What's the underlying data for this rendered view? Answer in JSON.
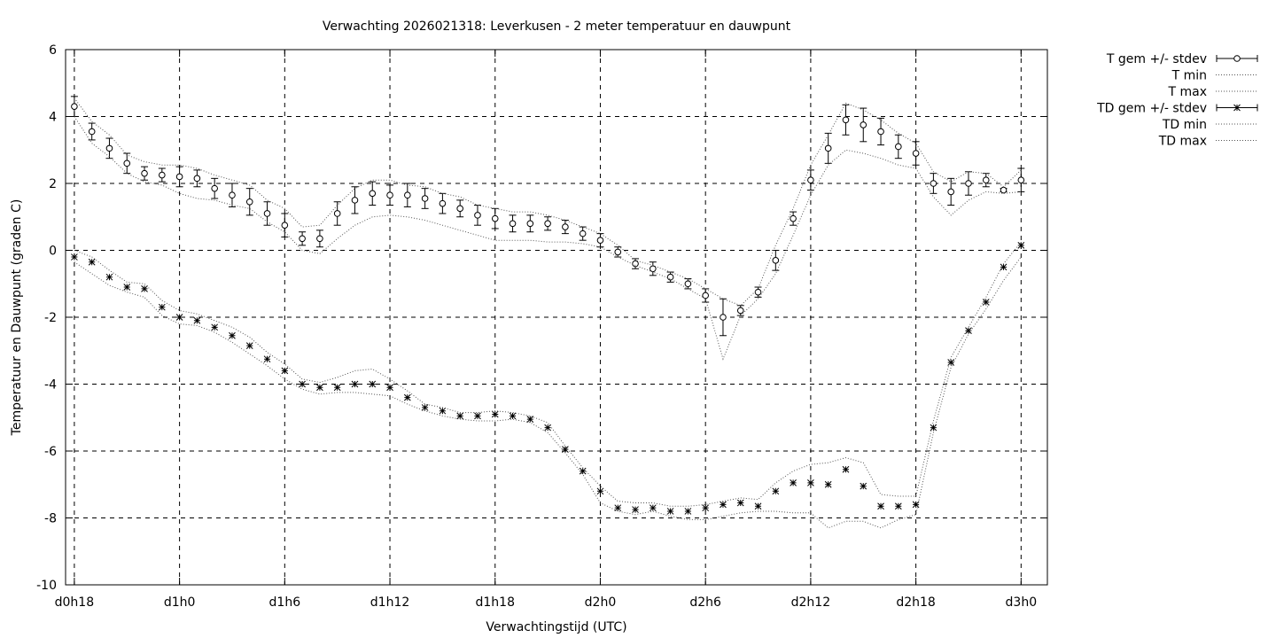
{
  "chart_data": {
    "type": "line",
    "title": "Verwachting 2026021318: Leverkusen - 2 meter temperatuur en dauwpunt",
    "xlabel": "Verwachtingstijd (UTC)",
    "ylabel": "Temperatuur en Dauwpunt (graden C)",
    "ylim": [
      -10,
      6
    ],
    "yticks": [
      "6",
      "4",
      "2",
      "0",
      "-2",
      "-4",
      "-6",
      "-8",
      "-10"
    ],
    "xlim": [
      17.5,
      73.5
    ],
    "xticks": [
      {
        "x": 18,
        "label": "d0h18"
      },
      {
        "x": 24,
        "label": "d1h0"
      },
      {
        "x": 30,
        "label": "d1h6"
      },
      {
        "x": 36,
        "label": "d1h12"
      },
      {
        "x": 42,
        "label": "d1h18"
      },
      {
        "x": 48,
        "label": "d2h0"
      },
      {
        "x": 54,
        "label": "d2h6"
      },
      {
        "x": 60,
        "label": "d2h12"
      },
      {
        "x": 66,
        "label": "d2h18"
      },
      {
        "x": 72,
        "label": "d3h0"
      }
    ],
    "grid": true,
    "legend_position": "outside-top-right",
    "x": [
      18,
      19,
      20,
      21,
      22,
      23,
      24,
      25,
      26,
      27,
      28,
      29,
      30,
      31,
      32,
      33,
      34,
      35,
      36,
      37,
      38,
      39,
      40,
      41,
      42,
      43,
      44,
      45,
      46,
      47,
      48,
      49,
      50,
      51,
      52,
      53,
      54,
      55,
      56,
      57,
      58,
      59,
      60,
      61,
      62,
      63,
      64,
      65,
      66,
      67,
      68,
      69,
      70,
      71,
      72
    ],
    "series": [
      {
        "name": "T gem +/- stdev",
        "style": "points-errorbars",
        "marker": "circle",
        "values": [
          4.3,
          3.55,
          3.05,
          2.6,
          2.3,
          2.25,
          2.2,
          2.15,
          1.85,
          1.65,
          1.45,
          1.1,
          0.75,
          0.35,
          0.35,
          1.1,
          1.5,
          1.7,
          1.65,
          1.65,
          1.55,
          1.4,
          1.25,
          1.05,
          0.95,
          0.8,
          0.8,
          0.8,
          0.7,
          0.5,
          0.3,
          -0.05,
          -0.4,
          -0.55,
          -0.8,
          -1.0,
          -1.35,
          -2.0,
          -1.8,
          -1.25,
          -0.3,
          0.95,
          2.1,
          3.05,
          3.9,
          3.75,
          3.55,
          3.1,
          2.9,
          2.0,
          1.75,
          2.0,
          2.1,
          1.8,
          2.1
        ],
        "stdev": [
          0.3,
          0.25,
          0.3,
          0.3,
          0.2,
          0.2,
          0.3,
          0.25,
          0.3,
          0.35,
          0.4,
          0.35,
          0.35,
          0.2,
          0.25,
          0.35,
          0.4,
          0.35,
          0.3,
          0.35,
          0.3,
          0.3,
          0.25,
          0.3,
          0.3,
          0.25,
          0.25,
          0.2,
          0.2,
          0.2,
          0.2,
          0.15,
          0.15,
          0.2,
          0.15,
          0.15,
          0.2,
          0.55,
          0.15,
          0.15,
          0.3,
          0.2,
          0.3,
          0.45,
          0.45,
          0.5,
          0.4,
          0.35,
          0.35,
          0.3,
          0.4,
          0.35,
          0.2,
          0.05,
          0.35
        ]
      },
      {
        "name": "T min",
        "style": "dotted",
        "values": [
          4.0,
          3.2,
          2.8,
          2.3,
          2.05,
          1.95,
          1.7,
          1.55,
          1.5,
          1.35,
          1.25,
          0.85,
          0.55,
          0.0,
          -0.1,
          0.35,
          0.75,
          1.0,
          1.05,
          1.0,
          0.9,
          0.75,
          0.6,
          0.45,
          0.3,
          0.3,
          0.3,
          0.25,
          0.25,
          0.2,
          0.1,
          -0.2,
          -0.45,
          -0.65,
          -0.85,
          -1.15,
          -1.45,
          -3.25,
          -1.95,
          -1.45,
          -0.7,
          0.45,
          1.65,
          2.55,
          3.0,
          2.9,
          2.75,
          2.55,
          2.45,
          1.6,
          1.05,
          1.5,
          1.75,
          1.7,
          1.75
        ]
      },
      {
        "name": "T max",
        "style": "dotted",
        "values": [
          4.55,
          3.85,
          3.45,
          2.85,
          2.65,
          2.55,
          2.55,
          2.45,
          2.25,
          2.1,
          1.95,
          1.5,
          1.25,
          0.7,
          0.75,
          1.35,
          1.85,
          2.1,
          2.1,
          1.95,
          1.9,
          1.7,
          1.6,
          1.35,
          1.25,
          1.15,
          1.15,
          1.05,
          0.9,
          0.7,
          0.5,
          0.15,
          -0.3,
          -0.45,
          -0.65,
          -0.85,
          -1.15,
          -1.45,
          -1.65,
          -1.15,
          0.15,
          1.25,
          2.55,
          3.45,
          4.4,
          4.2,
          3.9,
          3.5,
          3.2,
          2.35,
          2.05,
          2.35,
          2.3,
          1.9,
          2.4
        ]
      },
      {
        "name": "TD gem +/- stdev",
        "style": "points-errorbars",
        "marker": "star",
        "values": [
          -0.2,
          -0.35,
          -0.8,
          -1.1,
          -1.15,
          -1.7,
          -2.0,
          -2.1,
          -2.3,
          -2.55,
          -2.85,
          -3.25,
          -3.6,
          -4.0,
          -4.1,
          -4.1,
          -4.0,
          -4.0,
          -4.1,
          -4.4,
          -4.7,
          -4.8,
          -4.95,
          -4.95,
          -4.9,
          -4.95,
          -5.05,
          -5.3,
          -5.95,
          -6.6,
          -7.2,
          -7.7,
          -7.75,
          -7.7,
          -7.8,
          -7.8,
          -7.7,
          -7.6,
          -7.55,
          -7.65,
          -7.2,
          -6.95,
          -6.95,
          -7.0,
          -6.55,
          -7.05,
          -7.65,
          -7.65,
          -7.6,
          -5.3,
          -3.35,
          -2.4,
          -1.55,
          -0.5,
          0.15
        ]
      },
      {
        "name": "TD min",
        "style": "dotted",
        "values": [
          -0.35,
          -0.7,
          -1.05,
          -1.25,
          -1.4,
          -1.95,
          -2.2,
          -2.25,
          -2.45,
          -2.75,
          -3.1,
          -3.45,
          -3.85,
          -4.15,
          -4.3,
          -4.25,
          -4.25,
          -4.3,
          -4.35,
          -4.6,
          -4.8,
          -4.95,
          -5.05,
          -5.1,
          -5.1,
          -5.05,
          -5.15,
          -5.45,
          -6.05,
          -6.7,
          -7.55,
          -7.8,
          -7.9,
          -7.8,
          -7.95,
          -8.05,
          -8.05,
          -7.95,
          -7.85,
          -7.8,
          -7.8,
          -7.85,
          -7.85,
          -8.3,
          -8.1,
          -8.1,
          -8.3,
          -8.05,
          -7.9,
          -5.45,
          -3.5,
          -2.5,
          -1.75,
          -0.9,
          -0.2
        ]
      },
      {
        "name": "TD max",
        "style": "dotted",
        "values": [
          0.0,
          -0.2,
          -0.6,
          -0.95,
          -1.0,
          -1.5,
          -1.8,
          -1.9,
          -2.1,
          -2.3,
          -2.6,
          -3.05,
          -3.4,
          -3.85,
          -3.95,
          -3.8,
          -3.6,
          -3.55,
          -3.85,
          -4.2,
          -4.6,
          -4.7,
          -4.85,
          -4.85,
          -4.8,
          -4.85,
          -4.95,
          -5.15,
          -5.85,
          -6.5,
          -7.05,
          -7.5,
          -7.55,
          -7.55,
          -7.65,
          -7.65,
          -7.6,
          -7.5,
          -7.4,
          -7.45,
          -6.95,
          -6.6,
          -6.4,
          -6.35,
          -6.2,
          -6.35,
          -7.3,
          -7.35,
          -7.35,
          -5.1,
          -3.2,
          -2.3,
          -1.4,
          -0.4,
          0.25
        ]
      }
    ]
  }
}
